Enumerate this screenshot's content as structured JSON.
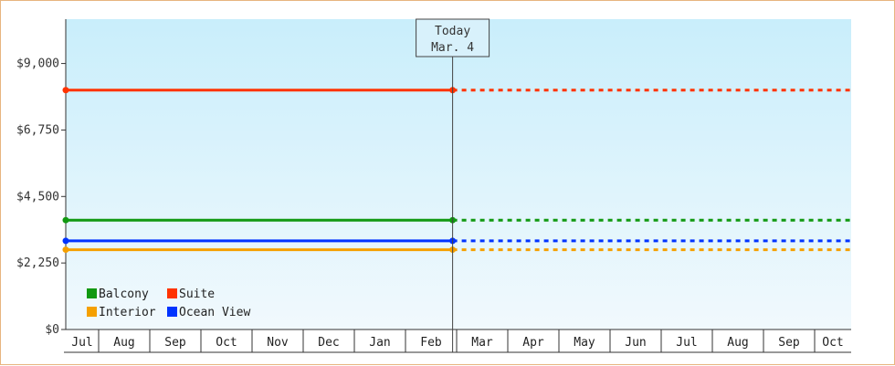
{
  "chart_data": {
    "type": "line",
    "title": "",
    "xlabel": "",
    "ylabel": "",
    "ylim": [
      0,
      10500
    ],
    "y_ticks": [
      0,
      2250,
      4500,
      6750,
      9000
    ],
    "y_tick_labels": [
      "$0",
      "$2,250",
      "$4,500",
      "$6,750",
      "$9,000"
    ],
    "x_ticks": [
      "Jul",
      "Aug",
      "Sep",
      "Oct",
      "Nov",
      "Dec",
      "Jan",
      "Feb",
      "Mar",
      "Apr",
      "May",
      "Jun",
      "Jul",
      "Aug",
      "Sep",
      "Oct"
    ],
    "today_marker": {
      "line1": "Today",
      "line2": "Mar. 4",
      "x_month_index": 7.6
    },
    "series": [
      {
        "name": "Suite",
        "color": "#ff3300",
        "value": 8100,
        "x_start": 0,
        "x_today": 7.6,
        "projected_to": 15.8
      },
      {
        "name": "Balcony",
        "color": "#119911",
        "value": 3700,
        "x_start": 0,
        "x_today": 7.6,
        "projected_to": 15.8
      },
      {
        "name": "Ocean View",
        "color": "#0033ff",
        "value": 3000,
        "x_start": 0,
        "x_today": 7.6,
        "projected_to": 15.8
      },
      {
        "name": "Interior",
        "color": "#f5a000",
        "value": 2700,
        "x_start": 0,
        "x_today": 7.6,
        "projected_to": 15.8
      }
    ],
    "legend": {
      "placement": "bottom-left",
      "rows": [
        [
          "Balcony",
          "Suite"
        ],
        [
          "Interior",
          "Ocean View"
        ]
      ]
    },
    "grid": false,
    "colors": {
      "background_top": "#c9eefb",
      "background_bottom": "#f1f9fd",
      "axis": "#333333",
      "border": "#e7b57f"
    }
  }
}
